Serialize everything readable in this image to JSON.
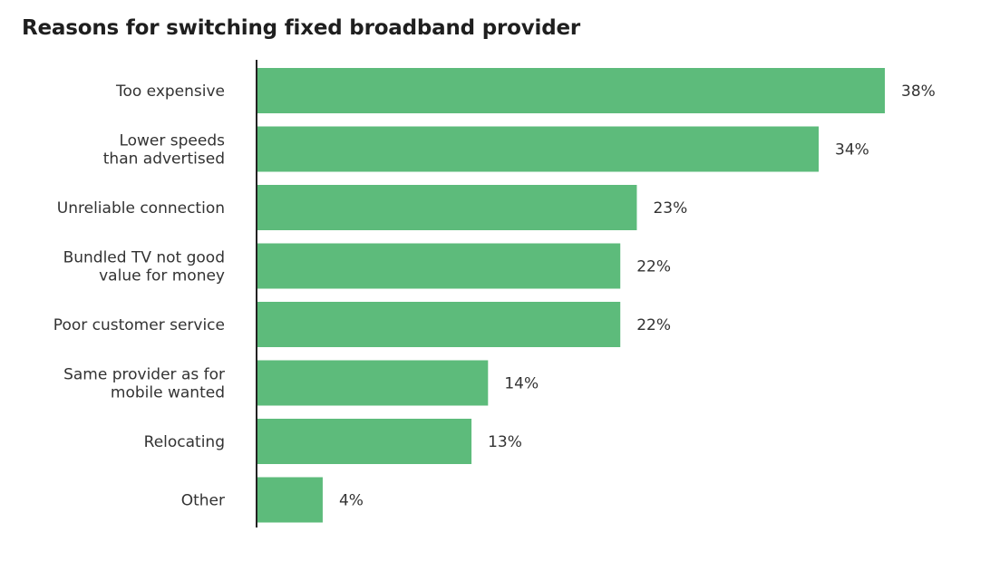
{
  "chart_data": {
    "type": "bar",
    "orientation": "horizontal",
    "title": "Reasons for switching fixed broadband provider",
    "categories": [
      [
        "Too expensive"
      ],
      [
        "Lower speeds",
        "than advertised"
      ],
      [
        "Unreliable connection"
      ],
      [
        "Bundled TV not good",
        "value for money"
      ],
      [
        "Poor customer service"
      ],
      [
        "Same provider as for",
        "mobile wanted"
      ],
      [
        "Relocating"
      ],
      [
        "Other"
      ]
    ],
    "values": [
      38,
      34,
      23,
      22,
      22,
      14,
      13,
      4
    ],
    "value_labels": [
      "38%",
      "34%",
      "23%",
      "22%",
      "22%",
      "14%",
      "13%",
      "4%"
    ],
    "unit": "%",
    "xlim": [
      0,
      38
    ],
    "grid": false,
    "legend": "none",
    "bar_color": "#5dbb7b",
    "axis_color": "#222222"
  }
}
